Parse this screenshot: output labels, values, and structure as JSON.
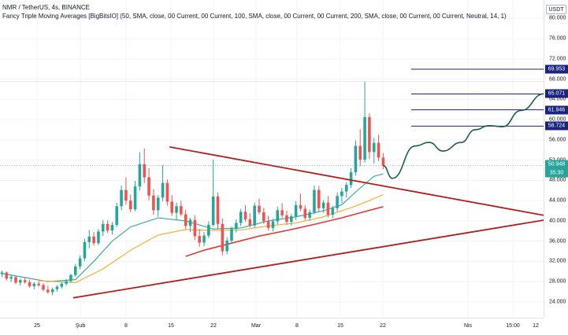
{
  "title": "NMR / TetherUS, 4s, BINANCE",
  "indicator": "Fancy Triple Moving Averages [BigBitsIO] (50, SMA, close, 00 Current, 00 Current, 100, SMA, close, 00 Current, 00 Current, 200, SMA, close, 00 Current, 00 Current, Neutral, 14, 1)",
  "currency": "USDT",
  "colors": {
    "up": "#26a69a",
    "down": "#ef5350",
    "trendline": "#b71c1c",
    "ma50": "#26a69a",
    "ma100": "#f9a825",
    "ma200": "#e53935",
    "level": "#1a237e",
    "projection": "#1b5e4f"
  },
  "chart_data": {
    "type": "candlestick",
    "symbol": "NMR / TetherUS",
    "interval": "4s",
    "exchange": "BINANCE",
    "price_axis": {
      "ticks": [
        "80.000",
        "76.000",
        "72.000",
        "68.000",
        "64.000",
        "60.000",
        "56.000",
        "52.000",
        "48.000",
        "44.000",
        "40.000",
        "36.000",
        "32.000",
        "28.000",
        "24.000"
      ],
      "range": [
        21.5,
        83
      ]
    },
    "time_axis": {
      "ticks": [
        "25",
        "Şub",
        "8",
        "15",
        "22",
        "Mar",
        "8",
        "15",
        "22",
        "Nis",
        "15:00",
        "12"
      ]
    },
    "last_price": "50.948",
    "countdown": "35:30",
    "levels": [
      "69.953",
      "65.071",
      "61.946",
      "58.724"
    ],
    "candles": [
      [
        29.5,
        30.2,
        28.9,
        29.8
      ],
      [
        29.8,
        30.0,
        28.2,
        28.6
      ],
      [
        28.6,
        29.4,
        27.9,
        28.9
      ],
      [
        28.9,
        29.1,
        27.5,
        27.8
      ],
      [
        27.8,
        28.6,
        27.2,
        28.3
      ],
      [
        28.3,
        28.9,
        27.6,
        27.9
      ],
      [
        27.9,
        28.4,
        26.8,
        27.1
      ],
      [
        27.1,
        27.9,
        26.5,
        27.6
      ],
      [
        27.6,
        28.1,
        27.0,
        27.3
      ],
      [
        27.3,
        27.7,
        26.1,
        26.4
      ],
      [
        26.4,
        27.2,
        25.6,
        25.9
      ],
      [
        25.9,
        26.8,
        25.3,
        26.5
      ],
      [
        26.5,
        27.3,
        26.0,
        27.0
      ],
      [
        27.0,
        27.9,
        26.6,
        27.6
      ],
      [
        27.6,
        28.5,
        27.2,
        28.1
      ],
      [
        28.1,
        29.6,
        27.8,
        29.3
      ],
      [
        29.3,
        31.5,
        29.0,
        31.0
      ],
      [
        31.0,
        33.2,
        30.4,
        32.6
      ],
      [
        32.6,
        36.5,
        32.1,
        35.8
      ],
      [
        35.8,
        38.2,
        34.6,
        36.9
      ],
      [
        36.9,
        37.8,
        35.1,
        35.6
      ],
      [
        35.6,
        38.4,
        35.2,
        37.9
      ],
      [
        37.9,
        40.2,
        37.0,
        39.4
      ],
      [
        39.4,
        40.1,
        37.6,
        38.1
      ],
      [
        38.1,
        39.8,
        37.3,
        39.2
      ],
      [
        39.2,
        43.6,
        38.8,
        42.9
      ],
      [
        42.9,
        47.0,
        42.1,
        46.1
      ],
      [
        46.1,
        48.6,
        43.2,
        44.0
      ],
      [
        44.0,
        45.2,
        41.7,
        42.3
      ],
      [
        42.3,
        47.9,
        41.9,
        46.8
      ],
      [
        46.8,
        53.5,
        46.0,
        51.2
      ],
      [
        51.2,
        54.3,
        47.5,
        48.6
      ],
      [
        48.6,
        50.4,
        44.1,
        45.0
      ],
      [
        45.0,
        46.3,
        41.2,
        42.1
      ],
      [
        42.1,
        45.1,
        40.8,
        44.6
      ],
      [
        44.6,
        51.0,
        43.9,
        47.5
      ],
      [
        47.5,
        48.2,
        43.0,
        43.8
      ],
      [
        43.8,
        45.1,
        41.0,
        41.6
      ],
      [
        41.6,
        43.6,
        40.2,
        42.9
      ],
      [
        42.9,
        44.0,
        40.9,
        41.3
      ],
      [
        41.3,
        42.2,
        38.4,
        39.0
      ],
      [
        39.0,
        40.6,
        37.8,
        40.2
      ],
      [
        40.2,
        41.1,
        36.2,
        37.0
      ],
      [
        37.0,
        38.4,
        34.9,
        35.7
      ],
      [
        35.7,
        37.8,
        35.0,
        37.1
      ],
      [
        37.1,
        39.9,
        36.6,
        39.2
      ],
      [
        39.2,
        52.1,
        38.9,
        44.8
      ],
      [
        44.8,
        45.6,
        38.5,
        39.4
      ],
      [
        39.4,
        40.5,
        33.2,
        34.0
      ],
      [
        34.0,
        36.8,
        33.4,
        36.1
      ],
      [
        36.1,
        38.9,
        35.5,
        38.4
      ],
      [
        38.4,
        40.3,
        37.7,
        39.6
      ],
      [
        39.6,
        42.4,
        39.0,
        41.8
      ],
      [
        41.8,
        43.1,
        39.8,
        40.3
      ],
      [
        40.3,
        41.5,
        38.7,
        39.1
      ],
      [
        39.1,
        43.6,
        38.6,
        43.0
      ],
      [
        43.0,
        44.4,
        41.2,
        41.7
      ],
      [
        41.7,
        42.6,
        39.4,
        39.9
      ],
      [
        39.9,
        41.0,
        38.1,
        38.6
      ],
      [
        38.6,
        40.4,
        37.9,
        39.9
      ],
      [
        39.9,
        42.8,
        39.3,
        42.1
      ],
      [
        42.1,
        43.5,
        40.6,
        41.1
      ],
      [
        41.1,
        42.0,
        39.2,
        39.8
      ],
      [
        39.8,
        41.4,
        39.1,
        40.9
      ],
      [
        40.9,
        43.9,
        40.2,
        43.1
      ],
      [
        43.1,
        45.4,
        41.9,
        42.4
      ],
      [
        42.4,
        43.1,
        40.1,
        40.6
      ],
      [
        40.6,
        42.2,
        40.0,
        41.7
      ],
      [
        41.7,
        47.0,
        41.3,
        46.1
      ],
      [
        46.1,
        46.9,
        41.8,
        42.5
      ],
      [
        42.5,
        44.1,
        41.6,
        43.6
      ],
      [
        43.6,
        44.9,
        40.7,
        41.2
      ],
      [
        41.2,
        43.0,
        40.5,
        42.5
      ],
      [
        42.5,
        45.6,
        41.8,
        44.9
      ],
      [
        44.9,
        46.5,
        43.5,
        45.8
      ],
      [
        45.8,
        47.6,
        44.6,
        47.1
      ],
      [
        47.1,
        50.4,
        46.5,
        49.6
      ],
      [
        49.6,
        55.9,
        49.0,
        54.8
      ],
      [
        54.8,
        58.1,
        50.8,
        52.1
      ],
      [
        52.1,
        67.5,
        51.5,
        60.5
      ],
      [
        60.5,
        61.2,
        52.2,
        53.6
      ],
      [
        53.6,
        56.4,
        51.3,
        55.4
      ],
      [
        55.4,
        57.0,
        51.8,
        52.5
      ],
      [
        52.5,
        53.4,
        50.2,
        50.9
      ]
    ],
    "moving_averages": [
      {
        "name": "50",
        "color": "#26a69a",
        "values": [
          [
            0,
            29.6
          ],
          [
            10,
            28.0
          ],
          [
            16,
            28.4
          ],
          [
            20,
            32.0
          ],
          [
            24,
            36.0
          ],
          [
            28,
            38.8
          ],
          [
            34,
            40.6
          ],
          [
            40,
            40.0
          ],
          [
            46,
            38.4
          ],
          [
            52,
            38.6
          ],
          [
            58,
            40.0
          ],
          [
            64,
            40.8
          ],
          [
            70,
            42.0
          ],
          [
            74,
            43.2
          ],
          [
            78,
            46.5
          ],
          [
            81,
            48.8
          ],
          [
            83,
            49.3
          ]
        ]
      },
      {
        "name": "100",
        "color": "#f9a825",
        "values": [
          [
            8,
            28.2
          ],
          [
            16,
            27.8
          ],
          [
            22,
            30.5
          ],
          [
            28,
            34.2
          ],
          [
            34,
            37.2
          ],
          [
            40,
            38.3
          ],
          [
            46,
            38.1
          ],
          [
            52,
            38.2
          ],
          [
            58,
            39.0
          ],
          [
            64,
            39.6
          ],
          [
            70,
            40.8
          ],
          [
            76,
            42.6
          ],
          [
            80,
            44.0
          ],
          [
            83,
            45.2
          ]
        ]
      },
      {
        "name": "200",
        "color": "#e53935",
        "values": [
          [
            40,
            33.0
          ],
          [
            44,
            34.2
          ],
          [
            50,
            35.6
          ],
          [
            56,
            37.0
          ],
          [
            62,
            38.1
          ],
          [
            68,
            39.3
          ],
          [
            74,
            40.6
          ],
          [
            78,
            41.6
          ],
          [
            83,
            42.8
          ]
        ]
      }
    ],
    "trendlines": [
      {
        "from": [
          15.5,
          24.8
        ],
        "to": [
          121,
          40.6
        ]
      },
      {
        "from": [
          36.5,
          54.6
        ],
        "to": [
          121,
          40.6
        ]
      },
      {
        "from": [
          121,
          40.6
        ],
        "to": [
          137,
          43.4
        ]
      }
    ],
    "projection": [
      [
        83,
        50.9
      ],
      [
        85,
        48.4
      ],
      [
        90,
        54.8
      ],
      [
        93,
        55.5
      ],
      [
        96,
        53.8
      ],
      [
        100,
        55.5
      ],
      [
        103,
        58.0
      ],
      [
        106,
        58.8
      ],
      [
        109,
        58.6
      ],
      [
        113,
        61.8
      ],
      [
        118,
        65.1
      ],
      [
        122,
        67.5
      ],
      [
        126,
        69.9
      ]
    ]
  }
}
